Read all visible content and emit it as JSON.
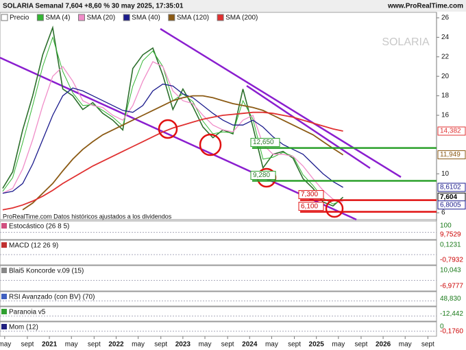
{
  "chart_data": {
    "type": "line",
    "header": "SOLARIA Semanal 7,604 +8,60 % 30 may 2025, 17:35:01",
    "site": "www.ProRealTime.com",
    "watermark": "SOLARIA",
    "note": "ProRealTime.com Datos históricos ajustados a los dividendos",
    "x": [
      2020.3,
      2020.45,
      2020.6,
      2020.75,
      2020.9,
      2021.05,
      2021.2,
      2021.35,
      2021.5,
      2021.65,
      2021.8,
      2021.95,
      2022.1,
      2022.25,
      2022.4,
      2022.55,
      2022.7,
      2022.85,
      2023.0,
      2023.15,
      2023.3,
      2023.45,
      2023.6,
      2023.75,
      2023.9,
      2024.05,
      2024.2,
      2024.35,
      2024.5,
      2024.65,
      2024.8,
      2024.95,
      2025.1,
      2025.25,
      2025.4
    ],
    "series": [
      {
        "name": "Precio",
        "color": "#2b6e2b",
        "values": [
          8.5,
          10.2,
          14.5,
          18,
          22.2,
          25,
          18.7,
          18,
          16.6,
          17.3,
          16.2,
          15.5,
          14.5,
          20.8,
          22.2,
          22.9,
          20.1,
          16.6,
          18.7,
          16.9,
          14.8,
          13.7,
          14.5,
          14.1,
          18.7,
          14.8,
          10.6,
          12,
          12.3,
          11.6,
          9.5,
          8.5,
          7.1,
          6.7,
          7.604
        ]
      },
      {
        "name": "SMA (4)",
        "color": "#33b533",
        "values": [
          8.2,
          9.6,
          13.2,
          17,
          21,
          24,
          20.5,
          18.3,
          17,
          17.1,
          16.5,
          15.8,
          14.9,
          19,
          21.6,
          22.6,
          21,
          17.5,
          18.2,
          17.4,
          15.4,
          14.1,
          14.3,
          14.2,
          17.5,
          15.6,
          11.5,
          11.7,
          12.2,
          11.8,
          9.9,
          8.8,
          7.5,
          6.9,
          7.3
        ]
      },
      {
        "name": "SMA (20)",
        "color": "#f08cc8",
        "values": [
          8,
          8.5,
          10.5,
          13.5,
          17,
          20,
          21,
          19.5,
          17.5,
          17,
          16.8,
          16,
          15.5,
          17,
          19.5,
          21.5,
          21,
          18.5,
          17.5,
          17.2,
          16,
          15,
          14.5,
          14.3,
          15.5,
          16,
          13,
          12,
          12,
          11.8,
          10.8,
          9.5,
          8.3,
          7.4,
          7.1
        ]
      },
      {
        "name": "SMA (40)",
        "color": "#1a1a8c",
        "values": [
          8,
          8.2,
          9,
          11,
          13.5,
          16,
          18,
          18.8,
          18.5,
          18,
          17.5,
          17,
          16.5,
          16.3,
          17,
          18.5,
          19.2,
          19,
          18.2,
          17.8,
          17,
          16.2,
          15.5,
          15,
          15,
          15.5,
          14.8,
          13.8,
          13,
          12.5,
          12,
          11,
          10,
          9.2,
          8.6102
        ]
      },
      {
        "name": "SMA (120)",
        "color": "#8b5a14",
        "values": [
          null,
          null,
          6.3,
          7,
          8,
          9,
          10.3,
          11.5,
          12.5,
          13.3,
          14,
          14.5,
          15,
          15.5,
          16,
          16.5,
          17,
          17.5,
          17.8,
          18,
          18,
          17.8,
          17.5,
          17.2,
          17,
          16.8,
          16.5,
          16,
          15.5,
          15,
          14.5,
          14,
          13.3,
          12.6,
          11.949
        ]
      },
      {
        "name": "SMA (200)",
        "color": "#e03030",
        "values": [
          6.3,
          6.5,
          6.8,
          7.2,
          7.7,
          8.3,
          9,
          9.6,
          10.2,
          10.8,
          11.3,
          11.8,
          12.3,
          12.8,
          13.3,
          13.8,
          14.3,
          14.7,
          15,
          15.3,
          15.6,
          15.8,
          16,
          16.1,
          16.2,
          16.3,
          16.3,
          16.2,
          16,
          15.8,
          15.5,
          15.2,
          14.9,
          14.6,
          14.382
        ]
      }
    ],
    "xlim": [
      2020.26,
      2026.8
    ],
    "xticks": [
      {
        "value": 2020.33,
        "label": "may"
      },
      {
        "value": 2020.67,
        "label": "sept"
      },
      2021,
      {
        "value": 2021.33,
        "label": "may"
      },
      {
        "value": 2021.67,
        "label": "sept"
      },
      2022,
      {
        "value": 2022.33,
        "label": "may"
      },
      {
        "value": 2022.67,
        "label": "sept"
      },
      2023,
      {
        "value": 2023.33,
        "label": "may"
      },
      {
        "value": 2023.67,
        "label": "sept"
      },
      2024,
      {
        "value": 2024.33,
        "label": "may"
      },
      {
        "value": 2024.67,
        "label": "sept"
      },
      2025,
      {
        "value": 2025.33,
        "label": "may"
      },
      {
        "value": 2025.67,
        "label": "sept"
      },
      2026,
      {
        "value": 2026.33,
        "label": "may"
      },
      {
        "value": 2026.67,
        "label": "sept"
      }
    ],
    "ylim": [
      5.3,
      26.56
    ],
    "yticks": [
      6,
      10,
      16,
      18,
      20,
      22,
      24,
      26
    ],
    "last_values": [
      {
        "value": 14.382,
        "label": "14,382",
        "color": "#e03030"
      },
      {
        "value": 11.949,
        "label": "11,949",
        "color": "#8b5a14"
      },
      {
        "value": 8.6102,
        "label": "8,6102",
        "color": "#1a1a8c"
      },
      {
        "value": 7.604,
        "label": "7,604",
        "color": "#000000"
      },
      {
        "value": 6.8005,
        "label": "6,8005",
        "color": "#1a1a8c"
      }
    ],
    "levels": [
      {
        "value": 12.65,
        "label": "12,650",
        "color": "#2aa02a"
      },
      {
        "value": 9.28,
        "label": "9,280",
        "color": "#2aa02a"
      },
      {
        "value": 7.3,
        "label": "7,300",
        "color": "#e01010"
      },
      {
        "value": 6.1,
        "label": "6,100",
        "color": "#e01010"
      }
    ],
    "panels": [
      {
        "name": "Estocástico (26 8 5)",
        "labels": [
          "100",
          "9,7529"
        ]
      },
      {
        "name": "MACD (12 26 9)",
        "labels": [
          "0,1231",
          "-0,7932"
        ]
      },
      {
        "name": "Blai5 Koncorde v.09 (15)",
        "labels": [
          "10,043",
          "-6,9777"
        ]
      },
      {
        "name": "RSI Avanzado (con BV) (70)",
        "labels": [
          "48,830"
        ]
      },
      {
        "name": "Paranoia v5",
        "labels": [
          "-12,442"
        ]
      },
      {
        "name": "Mom (12)",
        "labels": [
          "0",
          "-0,1760"
        ]
      }
    ]
  }
}
